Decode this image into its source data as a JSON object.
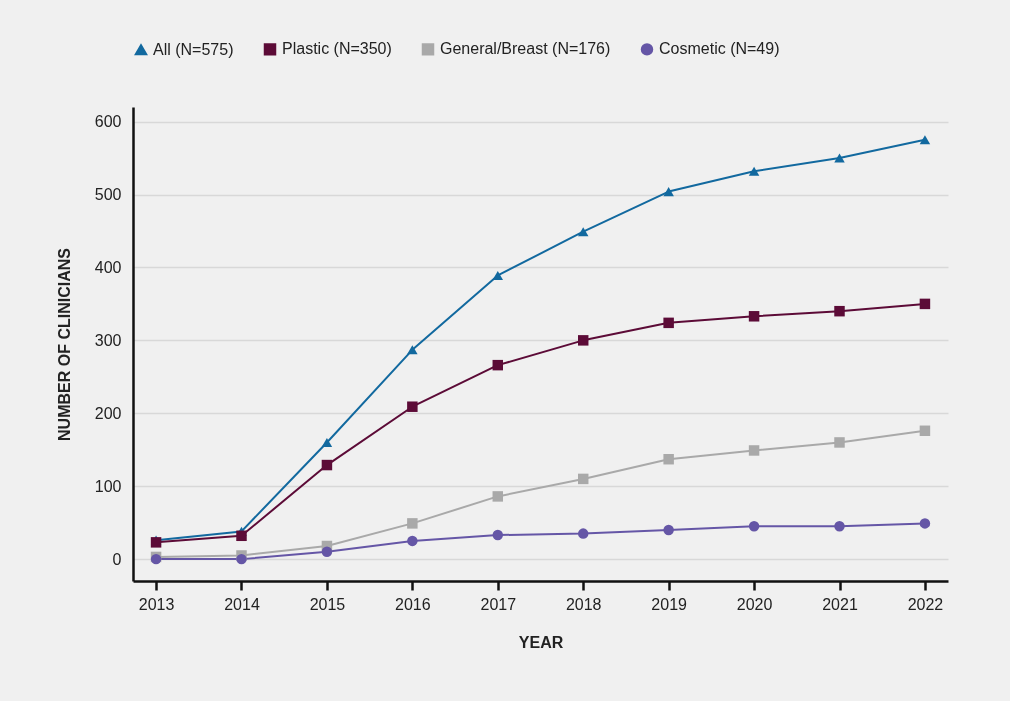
{
  "chart_data": {
    "type": "line",
    "xlabel": "YEAR",
    "ylabel": "NUMBER OF CLINICIANS",
    "categories": [
      "2013",
      "2014",
      "2015",
      "2016",
      "2017",
      "2018",
      "2019",
      "2020",
      "2021",
      "2022"
    ],
    "ylim": [
      -30,
      620
    ],
    "yticks": [
      0,
      100,
      200,
      300,
      400,
      500,
      600
    ],
    "grid": "y",
    "legend": "top",
    "series": [
      {
        "name": "All (N=575)",
        "color": "#12699f",
        "marker": "triangle",
        "values": [
          26,
          38,
          160,
          287,
          389,
          449,
          504,
          532,
          550,
          575
        ]
      },
      {
        "name": "Plastic (N=350)",
        "color": "#5c0b37",
        "marker": "square",
        "values": [
          23,
          32,
          129,
          209,
          266,
          300,
          324,
          333,
          340,
          350
        ]
      },
      {
        "name": "General/Breast (N=176)",
        "color": "#a9a9a9",
        "marker": "square",
        "values": [
          3,
          5,
          18,
          49,
          86,
          110,
          137,
          149,
          160,
          176
        ]
      },
      {
        "name": "Cosmetic (N=49)",
        "color": "#6556a6",
        "marker": "circle",
        "values": [
          0,
          0,
          10,
          25,
          33,
          35,
          40,
          45,
          45,
          49
        ]
      }
    ]
  }
}
